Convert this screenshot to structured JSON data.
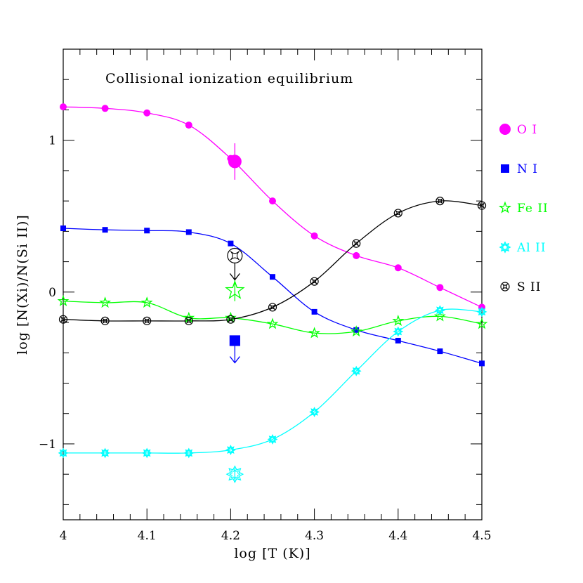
{
  "chart_data": {
    "type": "line",
    "title": "Collisional ionization equilibrium",
    "xlabel": "log [T (K)]",
    "ylabel": "log [N(Xi)/N(Si II)]",
    "xlim": [
      4.0,
      4.5
    ],
    "ylim": [
      -1.5,
      1.6
    ],
    "xticks": [
      {
        "value": 4.0,
        "label": "4"
      },
      {
        "value": 4.1,
        "label": "4.1"
      },
      {
        "value": 4.2,
        "label": "4.2"
      },
      {
        "value": 4.3,
        "label": "4.3"
      },
      {
        "value": 4.4,
        "label": "4.4"
      },
      {
        "value": 4.5,
        "label": "4.5"
      }
    ],
    "yticks": [
      {
        "value": -1,
        "label": "−1"
      },
      {
        "value": 0,
        "label": "0"
      },
      {
        "value": 1,
        "label": "1"
      }
    ],
    "grid": false,
    "legend_position": "right, outside plot",
    "series": [
      {
        "name": "O I",
        "color": "#ff00ff",
        "marker": "circle",
        "x": [
          4.0,
          4.05,
          4.1,
          4.15,
          4.2,
          4.25,
          4.3,
          4.35,
          4.4,
          4.45,
          4.5
        ],
        "y": [
          1.22,
          1.21,
          1.18,
          1.1,
          0.88,
          0.6,
          0.37,
          0.24,
          0.16,
          0.03,
          -0.1
        ],
        "observed": {
          "x": 4.205,
          "y": 0.86,
          "err": 0.12,
          "limit": "none"
        }
      },
      {
        "name": "N I",
        "color": "#0000ff",
        "marker": "square",
        "x": [
          4.0,
          4.05,
          4.1,
          4.15,
          4.2,
          4.25,
          4.3,
          4.35,
          4.4,
          4.45,
          4.5
        ],
        "y": [
          0.42,
          0.41,
          0.405,
          0.395,
          0.32,
          0.1,
          -0.13,
          -0.25,
          -0.32,
          -0.39,
          -0.47
        ],
        "observed": {
          "x": 4.205,
          "y": -0.32,
          "err": 0,
          "limit": "upper"
        }
      },
      {
        "name": "Fe II",
        "color": "#00ff00",
        "marker": "star",
        "x": [
          4.0,
          4.05,
          4.1,
          4.15,
          4.2,
          4.25,
          4.3,
          4.35,
          4.4,
          4.45,
          4.5
        ],
        "y": [
          -0.06,
          -0.07,
          -0.07,
          -0.17,
          -0.17,
          -0.21,
          -0.27,
          -0.26,
          -0.19,
          -0.16,
          -0.21
        ],
        "observed": {
          "x": 4.205,
          "y": 0.01,
          "err": 0.07,
          "limit": "none"
        }
      },
      {
        "name": "Al II",
        "color": "#00ffff",
        "marker": "starburst",
        "x": [
          4.0,
          4.05,
          4.1,
          4.15,
          4.2,
          4.25,
          4.3,
          4.35,
          4.4,
          4.45,
          4.5
        ],
        "y": [
          -1.06,
          -1.06,
          -1.06,
          -1.06,
          -1.04,
          -0.97,
          -0.79,
          -0.52,
          -0.26,
          -0.12,
          -0.13
        ],
        "observed": {
          "x": 4.205,
          "y": -1.2,
          "err": 0.04,
          "limit": "none"
        }
      },
      {
        "name": "S II",
        "color": "#000000",
        "marker": "circled-star",
        "x": [
          4.0,
          4.05,
          4.1,
          4.15,
          4.2,
          4.25,
          4.3,
          4.35,
          4.4,
          4.45,
          4.5
        ],
        "y": [
          -0.18,
          -0.19,
          -0.19,
          -0.19,
          -0.18,
          -0.1,
          0.07,
          0.32,
          0.52,
          0.6,
          0.57
        ],
        "observed": {
          "x": 4.205,
          "y": 0.24,
          "err": 0,
          "limit": "upper"
        }
      }
    ]
  }
}
